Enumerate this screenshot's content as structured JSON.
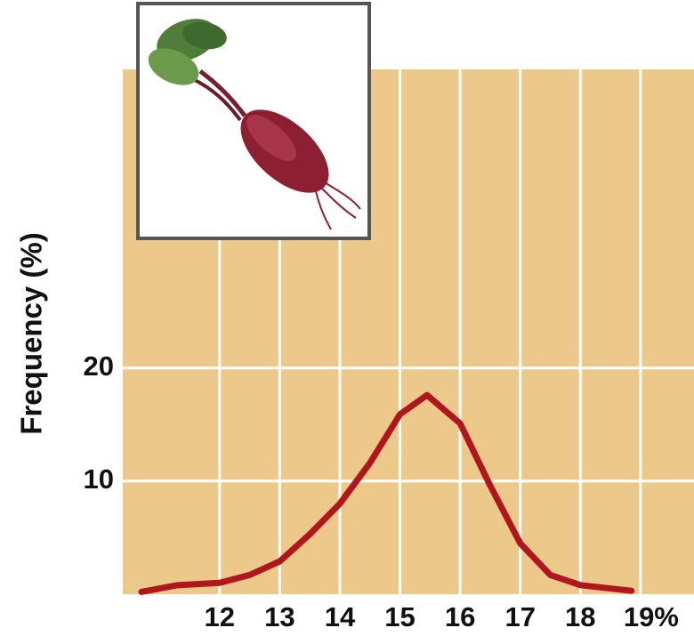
{
  "chart_data": {
    "type": "line",
    "y_label": "Frequency (%)",
    "x": [
      10.7,
      11.3,
      12,
      12.5,
      13,
      13.5,
      14,
      14.5,
      15,
      15.45,
      16,
      16.5,
      17,
      17.5,
      18,
      18.85
    ],
    "series": [
      {
        "color": "#b0161c",
        "values": [
          0.2,
          0.8,
          1.0,
          1.7,
          2.9,
          5.3,
          8.0,
          11.6,
          15.9,
          17.6,
          15.1,
          9.6,
          4.5,
          1.7,
          0.8,
          0.3
        ]
      }
    ],
    "xlim": [
      10.39,
      19.89
    ],
    "ylim": [
      0,
      46.4
    ],
    "xticks": [
      12,
      13,
      14,
      15,
      16,
      17,
      18,
      {
        "value": 19,
        "label": "19%"
      }
    ],
    "yticks": [
      10,
      20
    ],
    "grid": true
  }
}
